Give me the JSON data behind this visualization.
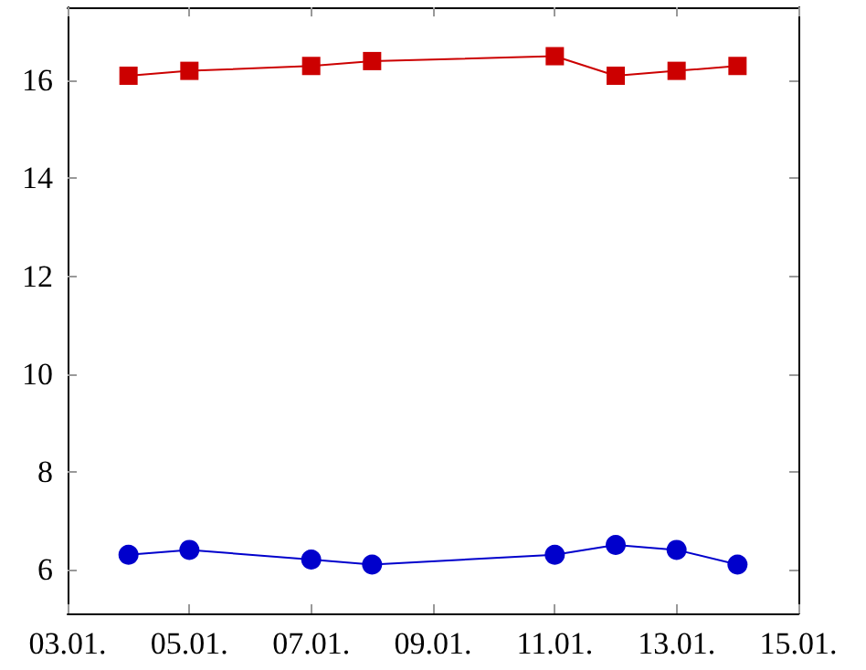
{
  "chart_data": {
    "type": "line",
    "x": [
      "--01-04",
      "--01-05",
      "--01-07",
      "--01-08",
      "--01-11",
      "--01-12",
      "--01-13",
      "--01-14"
    ],
    "series": [
      {
        "color": "#cc0000",
        "marker": "square",
        "values": [
          16.1,
          16.2,
          16.3,
          16.4,
          16.5,
          16.1,
          16.2,
          16.3
        ]
      },
      {
        "color": "#0000cc",
        "marker": "circle",
        "values": [
          6.3,
          6.4,
          6.2,
          6.1,
          6.3,
          6.5,
          6.4,
          6.1
        ]
      }
    ],
    "xlim": [
      "--01-03",
      "--01-15"
    ],
    "xticks": [
      {
        "value": "--01-03",
        "label": "03.01."
      },
      {
        "value": "--01-05",
        "label": "05.01."
      },
      {
        "value": "--01-07",
        "label": "07.01."
      },
      {
        "value": "--01-09",
        "label": "09.01."
      },
      {
        "value": "--01-11",
        "label": "11.01."
      },
      {
        "value": "--01-13",
        "label": "13.01."
      },
      {
        "value": "--01-15",
        "label": "15.01."
      }
    ],
    "ylim": [
      5.1,
      17.5
    ],
    "yticks": [
      6,
      8,
      10,
      12,
      14,
      16
    ],
    "grid": false,
    "line_style": "solid"
  }
}
